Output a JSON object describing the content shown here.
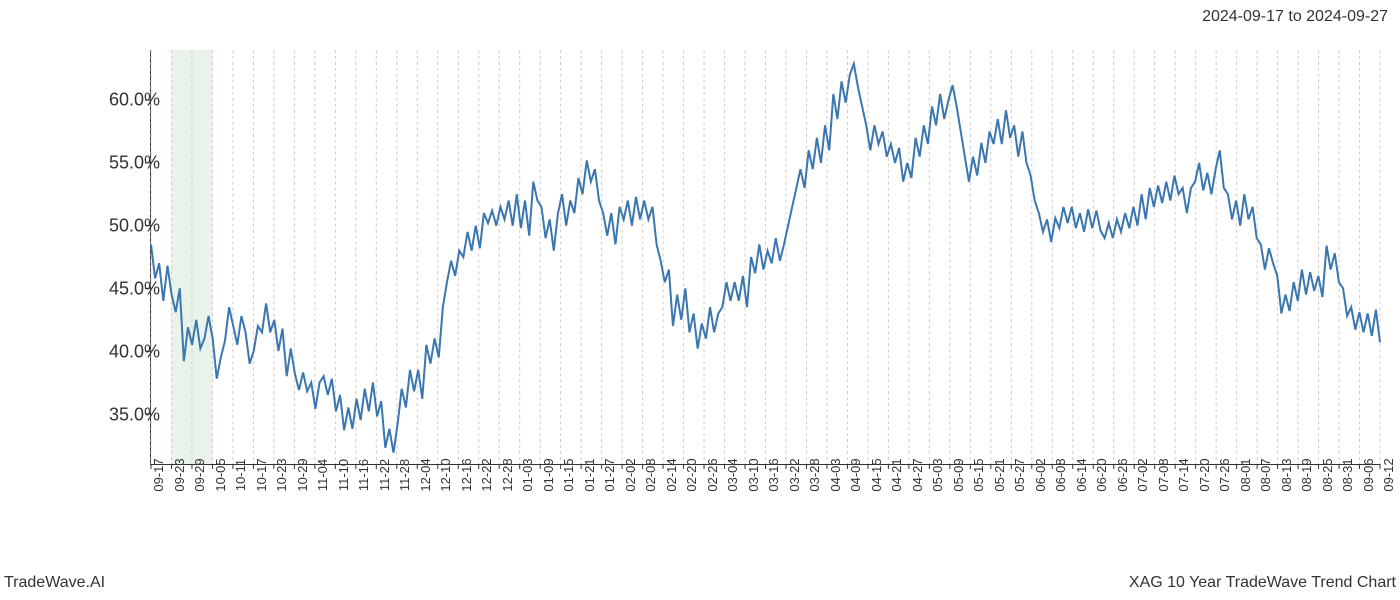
{
  "date_range": "2024-09-17 to 2024-09-27",
  "watermark_left": "TradeWave.AI",
  "watermark_right": "XAG 10 Year TradeWave Trend Chart",
  "chart": {
    "type": "line",
    "line_color": "#3a76af",
    "line_width": 2,
    "background_color": "#ffffff",
    "grid_color": "#cccccc",
    "grid_style": "dashed",
    "axis_color": "#333333",
    "highlight_band": {
      "color": "#d4e8d4",
      "opacity": 0.5,
      "x_start_index": 1,
      "x_end_index": 3
    },
    "ylim": [
      31,
      64
    ],
    "yticks": [
      35.0,
      40.0,
      45.0,
      50.0,
      55.0,
      60.0
    ],
    "ytick_labels": [
      "35.0%",
      "40.0%",
      "45.0%",
      "50.0%",
      "55.0%",
      "60.0%"
    ],
    "ytick_fontsize": 18,
    "xtick_fontsize": 13,
    "xtick_rotation": -90,
    "x_labels": [
      "09-17",
      "09-23",
      "09-29",
      "10-05",
      "10-11",
      "10-17",
      "10-23",
      "10-29",
      "11-04",
      "11-10",
      "11-16",
      "11-22",
      "11-28",
      "12-04",
      "12-10",
      "12-16",
      "12-22",
      "12-28",
      "01-03",
      "01-09",
      "01-15",
      "01-21",
      "01-27",
      "02-02",
      "02-08",
      "02-14",
      "02-20",
      "02-26",
      "03-04",
      "03-10",
      "03-16",
      "03-22",
      "03-28",
      "04-03",
      "04-09",
      "04-15",
      "04-21",
      "04-27",
      "05-03",
      "05-09",
      "05-15",
      "05-21",
      "05-27",
      "06-02",
      "06-08",
      "06-14",
      "06-20",
      "06-26",
      "07-02",
      "07-08",
      "07-14",
      "07-20",
      "07-26",
      "08-01",
      "08-07",
      "08-13",
      "08-19",
      "08-25",
      "08-31",
      "09-06",
      "09-12"
    ],
    "values": [
      48.5,
      45.8,
      47.0,
      44.0,
      46.8,
      44.5,
      43.1,
      45.0,
      39.2,
      41.9,
      40.5,
      42.5,
      40.2,
      41.0,
      42.8,
      41.0,
      37.8,
      39.5,
      40.8,
      43.5,
      42.0,
      40.5,
      42.8,
      41.5,
      39.0,
      40.0,
      42.0,
      41.5,
      43.8,
      41.5,
      42.5,
      40.0,
      41.8,
      38.0,
      40.2,
      38.2,
      36.9,
      38.3,
      36.8,
      37.5,
      35.4,
      37.5,
      38.0,
      36.5,
      37.8,
      35.2,
      36.5,
      33.7,
      35.5,
      33.8,
      36.2,
      34.5,
      37.0,
      35.2,
      37.5,
      34.8,
      36.0,
      32.3,
      33.8,
      31.9,
      34.2,
      37.0,
      35.5,
      38.5,
      36.8,
      38.5,
      36.2,
      40.5,
      39.0,
      41.0,
      39.5,
      43.5,
      45.5,
      47.2,
      46.0,
      48.0,
      47.5,
      49.5,
      48.0,
      50.0,
      48.2,
      51.0,
      50.2,
      51.2,
      50.0,
      51.5,
      50.5,
      52.0,
      50.0,
      52.5,
      49.8,
      52.0,
      49.2,
      53.5,
      52.0,
      51.5,
      49.0,
      50.5,
      48.0,
      51.0,
      52.5,
      50.0,
      52.0,
      51.0,
      53.8,
      52.5,
      55.2,
      53.5,
      54.5,
      52.0,
      51.0,
      49.2,
      51.0,
      48.5,
      51.5,
      50.5,
      52.0,
      50.0,
      52.3,
      50.5,
      52.0,
      50.5,
      51.5,
      48.5,
      47.2,
      45.5,
      46.5,
      42.0,
      44.5,
      42.5,
      45.0,
      41.5,
      43.0,
      40.2,
      42.2,
      41.0,
      43.5,
      41.5,
      43.0,
      43.5,
      45.5,
      44.0,
      45.5,
      44.0,
      46.0,
      43.5,
      47.5,
      46.2,
      48.5,
      46.5,
      48.0,
      47.0,
      49.0,
      47.2,
      48.5,
      50.0,
      51.5,
      53.0,
      54.5,
      53.0,
      56.0,
      54.5,
      57.0,
      55.0,
      58.0,
      56.0,
      60.5,
      58.5,
      61.5,
      59.8,
      62.0,
      62.9,
      61.0,
      59.5,
      58.0,
      56.0,
      58.0,
      56.5,
      57.5,
      55.5,
      56.5,
      55.0,
      56.2,
      53.5,
      55.0,
      53.8,
      57.0,
      55.5,
      58.0,
      56.5,
      59.5,
      58.0,
      60.5,
      58.5,
      60.0,
      61.2,
      59.5,
      57.5,
      55.5,
      53.5,
      55.5,
      54.0,
      56.6,
      55.0,
      57.5,
      56.5,
      58.5,
      56.5,
      59.2,
      57.0,
      58.0,
      55.5,
      57.5,
      55.0,
      54.0,
      52.0,
      51.0,
      49.5,
      50.5,
      48.7,
      50.6,
      49.8,
      51.5,
      50.2,
      51.5,
      49.8,
      51.0,
      49.5,
      51.3,
      49.8,
      51.2,
      49.6,
      49.0,
      50.2,
      49.0,
      50.5,
      49.5,
      51.0,
      49.8,
      51.5,
      50.0,
      52.5,
      50.5,
      53.0,
      51.5,
      53.2,
      51.8,
      53.5,
      52.0,
      54.0,
      52.5,
      53.0,
      51.0,
      53.0,
      53.5,
      55.0,
      52.8,
      54.2,
      52.5,
      54.5,
      56.0,
      53.0,
      52.5,
      50.5,
      52.0,
      50.0,
      52.5,
      50.5,
      51.5,
      49.0,
      48.5,
      46.5,
      48.2,
      47.0,
      46.0,
      43.0,
      44.5,
      43.2,
      45.5,
      44.0,
      46.5,
      44.5,
      46.3,
      44.8,
      46.0,
      44.3,
      48.4,
      46.5,
      47.8,
      45.5,
      45.0,
      42.8,
      43.5,
      41.7,
      43.1,
      41.5,
      43.0,
      41.2,
      43.3,
      40.7
    ]
  }
}
